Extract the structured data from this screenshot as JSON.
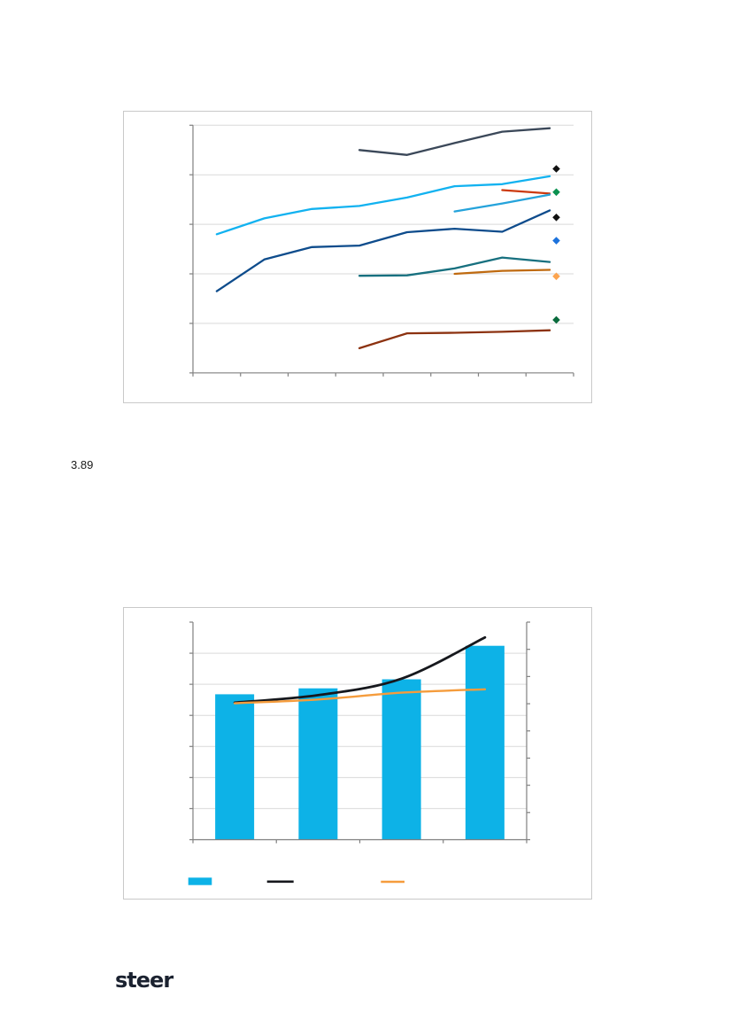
{
  "page": {
    "paragraph_number": "3.89",
    "logo_text": "steer",
    "logo_color": "#1b2230"
  },
  "chart_data": [
    {
      "type": "line",
      "title": "",
      "xlabel": "",
      "ylabel": "",
      "categories": [
        "",
        "",
        "",
        "",
        "",
        "",
        "",
        ""
      ],
      "ylim": [
        0,
        5
      ],
      "gridlines": 5,
      "grid_on": true,
      "legend_position": "none",
      "grid_color": "#d9d9d9",
      "axis_color": "#808080",
      "series": [
        {
          "name": "dark-gray",
          "color": "#3b4859",
          "values": [
            null,
            null,
            null,
            4.5,
            4.4,
            4.64,
            4.87,
            4.94
          ]
        },
        {
          "name": "light-blue",
          "color": "#12b2f0",
          "values": [
            2.8,
            3.12,
            3.31,
            3.37,
            3.54,
            3.77,
            3.81,
            3.97
          ]
        },
        {
          "name": "red",
          "color": "#cc3a0f",
          "values": [
            null,
            null,
            null,
            null,
            null,
            null,
            3.69,
            3.62
          ]
        },
        {
          "name": "medium-cyan",
          "color": "#25a3db",
          "values": [
            null,
            null,
            null,
            null,
            null,
            3.26,
            3.42,
            3.6
          ]
        },
        {
          "name": "navy-blue",
          "color": "#0e4c8c",
          "values": [
            1.65,
            2.29,
            2.54,
            2.57,
            2.84,
            2.91,
            2.85,
            3.28
          ]
        },
        {
          "name": "teal",
          "color": "#17707f",
          "values": [
            null,
            null,
            null,
            1.96,
            1.97,
            2.11,
            2.33,
            2.24
          ]
        },
        {
          "name": "dark-orange",
          "color": "#bf6a10",
          "values": [
            null,
            null,
            null,
            null,
            null,
            2.0,
            2.06,
            2.08
          ]
        },
        {
          "name": "maroon",
          "color": "#8c3210",
          "values": [
            null,
            null,
            null,
            0.5,
            0.8,
            0.81,
            0.83,
            0.86
          ]
        }
      ],
      "end_markers": [
        {
          "name": "black-diamond-upper",
          "color": "#111111",
          "value": 4.12
        },
        {
          "name": "green-diamond",
          "color": "#0b9150",
          "value": 3.65
        },
        {
          "name": "black-diamond-lower",
          "color": "#111111",
          "value": 3.14
        },
        {
          "name": "blue-diamond",
          "color": "#1c72dc",
          "value": 2.67
        },
        {
          "name": "light-orange-diamond",
          "color": "#fca44f",
          "value": 1.95
        },
        {
          "name": "dark-green-diamond",
          "color": "#0a6b3d",
          "value": 1.07
        }
      ]
    },
    {
      "type": "bar",
      "title": "",
      "xlabel": "",
      "ylabel": "",
      "categories": [
        "",
        "",
        "",
        ""
      ],
      "left_ylim": [
        0,
        7
      ],
      "right_ylim": [
        0,
        8
      ],
      "gridlines": 6,
      "grid_on": true,
      "legend_position": "bottom",
      "grid_color": "#d9d9d9",
      "axis_color": "#808080",
      "bars": {
        "name": "cyan-bars",
        "color": "#0db2e7",
        "values": [
          4.68,
          4.87,
          5.16,
          6.24
        ]
      },
      "lines": [
        {
          "name": "black-line",
          "color": "#16181d",
          "width": 2.8,
          "smooth": true,
          "values": [
            4.41,
            4.65,
            5.18,
            6.51
          ]
        },
        {
          "name": "orange-line",
          "color": "#f59c3c",
          "width": 2.4,
          "smooth": true,
          "values": [
            4.39,
            4.51,
            4.73,
            4.84
          ]
        }
      ],
      "legend": [
        {
          "swatch": "bar",
          "label": "",
          "color": "#0db2e7"
        },
        {
          "swatch": "line",
          "label": "",
          "color": "#16181d"
        },
        {
          "swatch": "line",
          "label": "",
          "color": "#f59c3c"
        }
      ]
    }
  ]
}
